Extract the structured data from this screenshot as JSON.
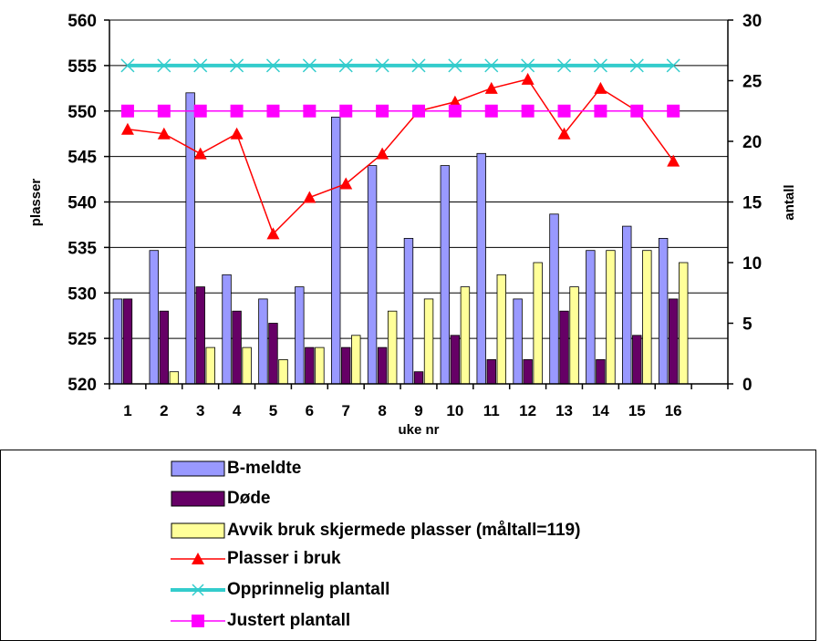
{
  "chart_data": {
    "type": "bar",
    "categories": [
      "1",
      "2",
      "3",
      "4",
      "5",
      "6",
      "7",
      "8",
      "9",
      "10",
      "11",
      "12",
      "13",
      "14",
      "15",
      "16"
    ],
    "xlabel": "uke nr",
    "ylabel": "plasser",
    "y2label": "antall",
    "ylim": [
      520,
      560
    ],
    "y_ticks": [
      "520",
      "525",
      "530",
      "535",
      "540",
      "545",
      "550",
      "555",
      "560"
    ],
    "y2lim": [
      0,
      30
    ],
    "y2_ticks": [
      "0",
      "5",
      "10",
      "15",
      "20",
      "25",
      "30"
    ],
    "grid": true,
    "legend_position": "bottom",
    "series": [
      {
        "name": "B-meldte",
        "kind": "bar",
        "axis": "right",
        "color": "#9999ff",
        "values": [
          7,
          11,
          24,
          9,
          7,
          8,
          22,
          18,
          12,
          18,
          19,
          7,
          14,
          11,
          13,
          12
        ]
      },
      {
        "name": "Døde",
        "kind": "bar",
        "axis": "right",
        "color": "#660066",
        "values": [
          7,
          6,
          8,
          6,
          5,
          3,
          3,
          3,
          1,
          4,
          2,
          2,
          6,
          2,
          4,
          7
        ]
      },
      {
        "name": "Avvik bruk skjermede plasser (måltall=119)",
        "kind": "bar",
        "axis": "right",
        "color": "#ffff99",
        "values": [
          0,
          1,
          3,
          3,
          2,
          3,
          4,
          6,
          7,
          8,
          9,
          10,
          8,
          11,
          11,
          10
        ]
      },
      {
        "name": "Plasser i bruk",
        "kind": "line",
        "axis": "left",
        "color": "#ff0000",
        "marker": "triangle",
        "values": [
          548,
          547.5,
          545.3,
          547.5,
          536.5,
          540.5,
          542,
          545.3,
          550,
          551,
          552.5,
          553.5,
          547.5,
          552.5,
          550,
          544.5
        ]
      },
      {
        "name": "Opprinnelig plantall",
        "kind": "line",
        "axis": "left",
        "color": "#33cccc",
        "marker": "x",
        "values": [
          555,
          555,
          555,
          555,
          555,
          555,
          555,
          555,
          555,
          555,
          555,
          555,
          555,
          555,
          555,
          555
        ]
      },
      {
        "name": "Justert plantall",
        "kind": "line",
        "axis": "left",
        "color": "#ff00ff",
        "marker": "square",
        "values": [
          550,
          550,
          550,
          550,
          550,
          550,
          550,
          550,
          550,
          550,
          550,
          550,
          550,
          550,
          550,
          550
        ]
      }
    ]
  }
}
